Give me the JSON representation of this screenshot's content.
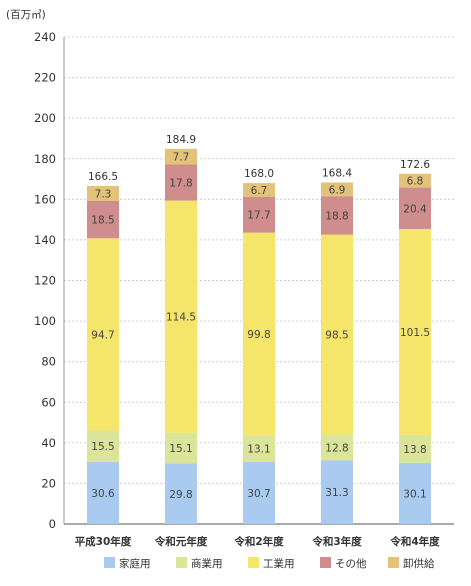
{
  "chart_data": {
    "type": "bar",
    "stacked": true,
    "unit_label": "(百万㎥)",
    "ylim": [
      0,
      240
    ],
    "yticks": [
      0,
      20,
      40,
      60,
      80,
      100,
      120,
      140,
      160,
      180,
      200,
      220,
      240
    ],
    "grid": "horizontal dashed",
    "legend_position": "bottom",
    "categories": [
      "平成30年度",
      "令和元年度",
      "令和2年度",
      "令和3年度",
      "令和4年度"
    ],
    "series": [
      {
        "name": "家庭用",
        "color": "#a9cbef",
        "values": [
          30.6,
          29.8,
          30.7,
          31.3,
          30.1
        ],
        "labels": [
          "30.6",
          "29.8",
          "30.7",
          "31.3",
          "30.1"
        ]
      },
      {
        "name": "商業用",
        "color": "#dbe59a",
        "values": [
          15.5,
          15.1,
          13.1,
          12.8,
          13.8
        ],
        "labels": [
          "15.5",
          "15.1",
          "13.1",
          "12.8",
          "13.8"
        ]
      },
      {
        "name": "工業用",
        "color": "#f5e56a",
        "values": [
          94.7,
          114.5,
          99.8,
          98.5,
          101.5
        ],
        "labels": [
          "94.7",
          "114.5",
          "99.8",
          "98.5",
          "101.5"
        ]
      },
      {
        "name": "その他",
        "color": "#cf8d8d",
        "values": [
          18.5,
          17.8,
          17.7,
          18.8,
          20.4
        ],
        "labels": [
          "18.5",
          "17.8",
          "17.7",
          "18.8",
          "20.4"
        ]
      },
      {
        "name": "卸供給",
        "color": "#e3c27a",
        "values": [
          7.3,
          7.7,
          6.7,
          6.9,
          6.8
        ],
        "labels": [
          "7.3",
          "7.7",
          "6.7",
          "6.9",
          "6.8"
        ]
      }
    ],
    "totals": [
      "166.5",
      "184.9",
      "168.0",
      "168.4",
      "172.6"
    ]
  }
}
